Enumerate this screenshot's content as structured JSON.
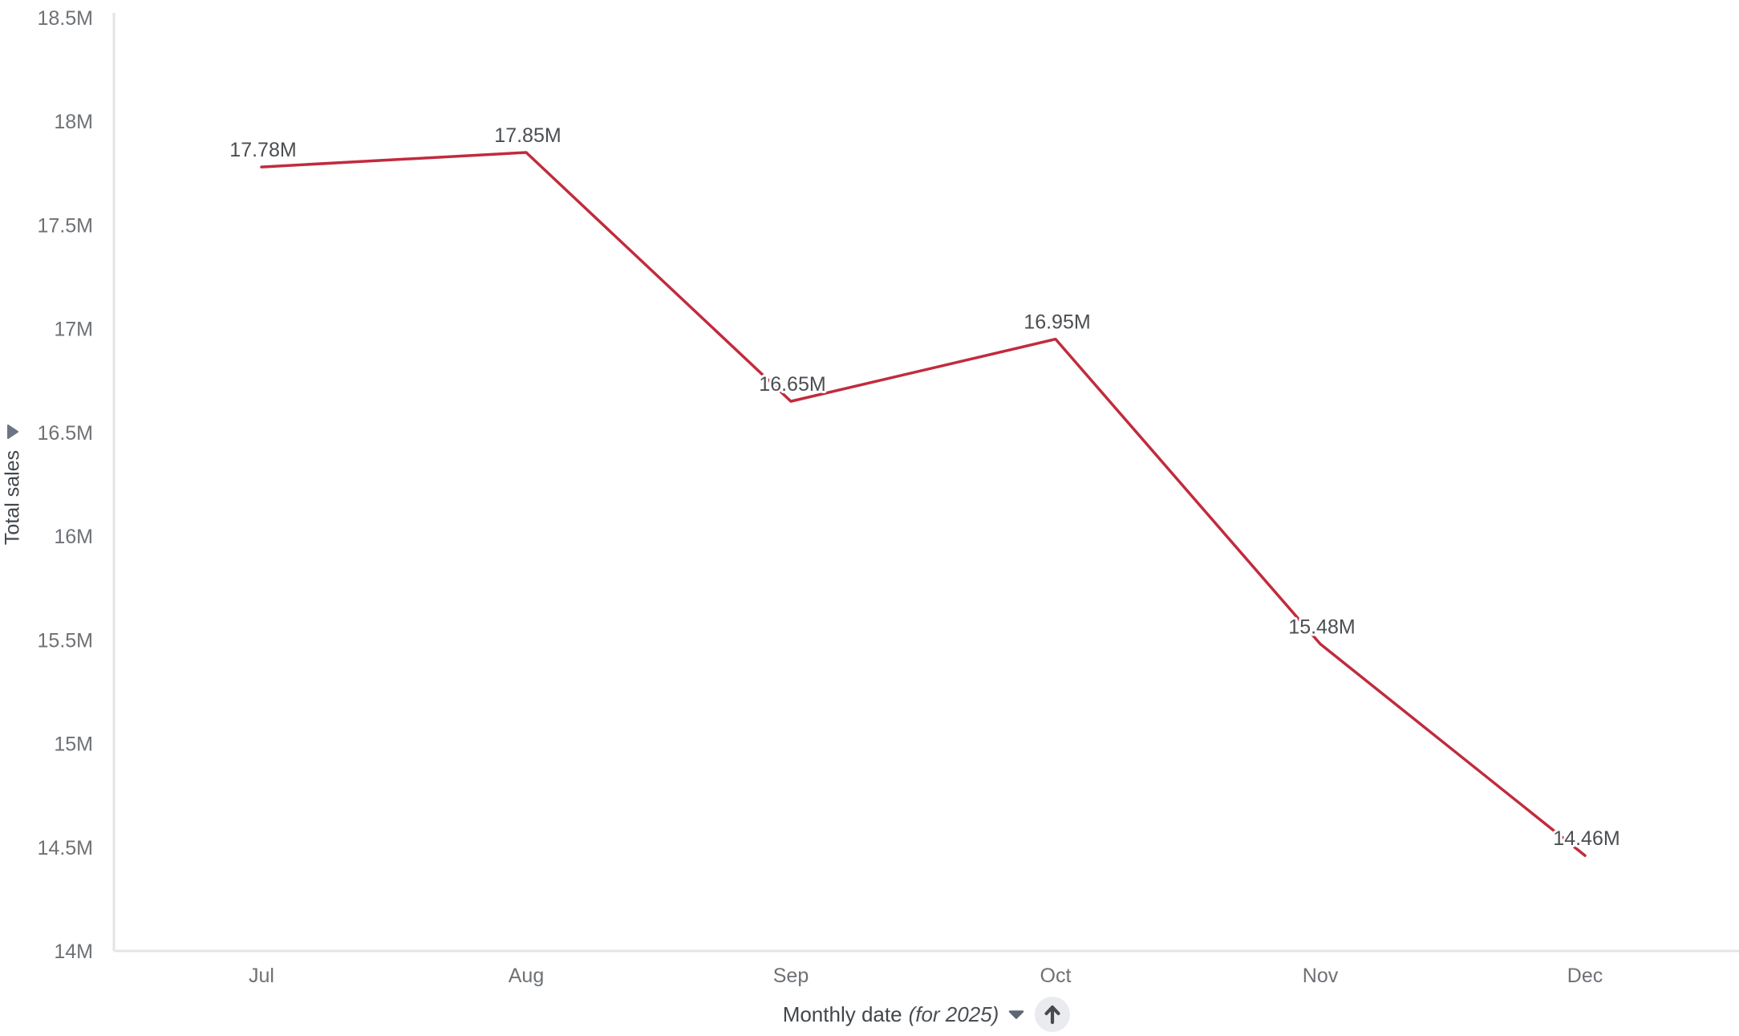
{
  "chart": {
    "y_axis": {
      "title": "Total sales",
      "arrow_icon": "triangle-right"
    },
    "x_axis": {
      "title": "Monthly date",
      "title_suffix": "(for 2025)",
      "caret_icon": "caret-down"
    },
    "sort_button": {
      "icon": "arrow-up"
    }
  },
  "chart_data": {
    "type": "line",
    "title": "",
    "categories": [
      "Jul",
      "Aug",
      "Sep",
      "Oct",
      "Nov",
      "Dec"
    ],
    "values": [
      17.78,
      17.85,
      16.65,
      16.95,
      15.48,
      14.46
    ],
    "point_labels": [
      "17.78M",
      "17.85M",
      "16.65M",
      "16.95M",
      "15.48M",
      "14.46M"
    ],
    "xlabel": "Monthly date (for 2025)",
    "ylabel": "Total sales",
    "ylim": [
      14,
      18.5
    ],
    "y_tick_labels": [
      "14M",
      "14.5M",
      "15M",
      "15.5M",
      "16M",
      "16.5M",
      "17M",
      "17.5M",
      "18M",
      "18.5M"
    ],
    "y_tick_values": [
      14,
      14.5,
      15,
      15.5,
      16,
      16.5,
      17,
      17.5,
      18,
      18.5
    ],
    "grid": false,
    "legend": false,
    "colors": {
      "line": "#c12b3d",
      "axis": "#e3e4e6",
      "tick_text": "#6e7175",
      "point_label_text": "#4b4e52",
      "axis_title_text": "#42474c",
      "icon": "#6b7585",
      "sort_button_bg": "#e9ebee",
      "sort_button_icon": "#47494d"
    }
  }
}
